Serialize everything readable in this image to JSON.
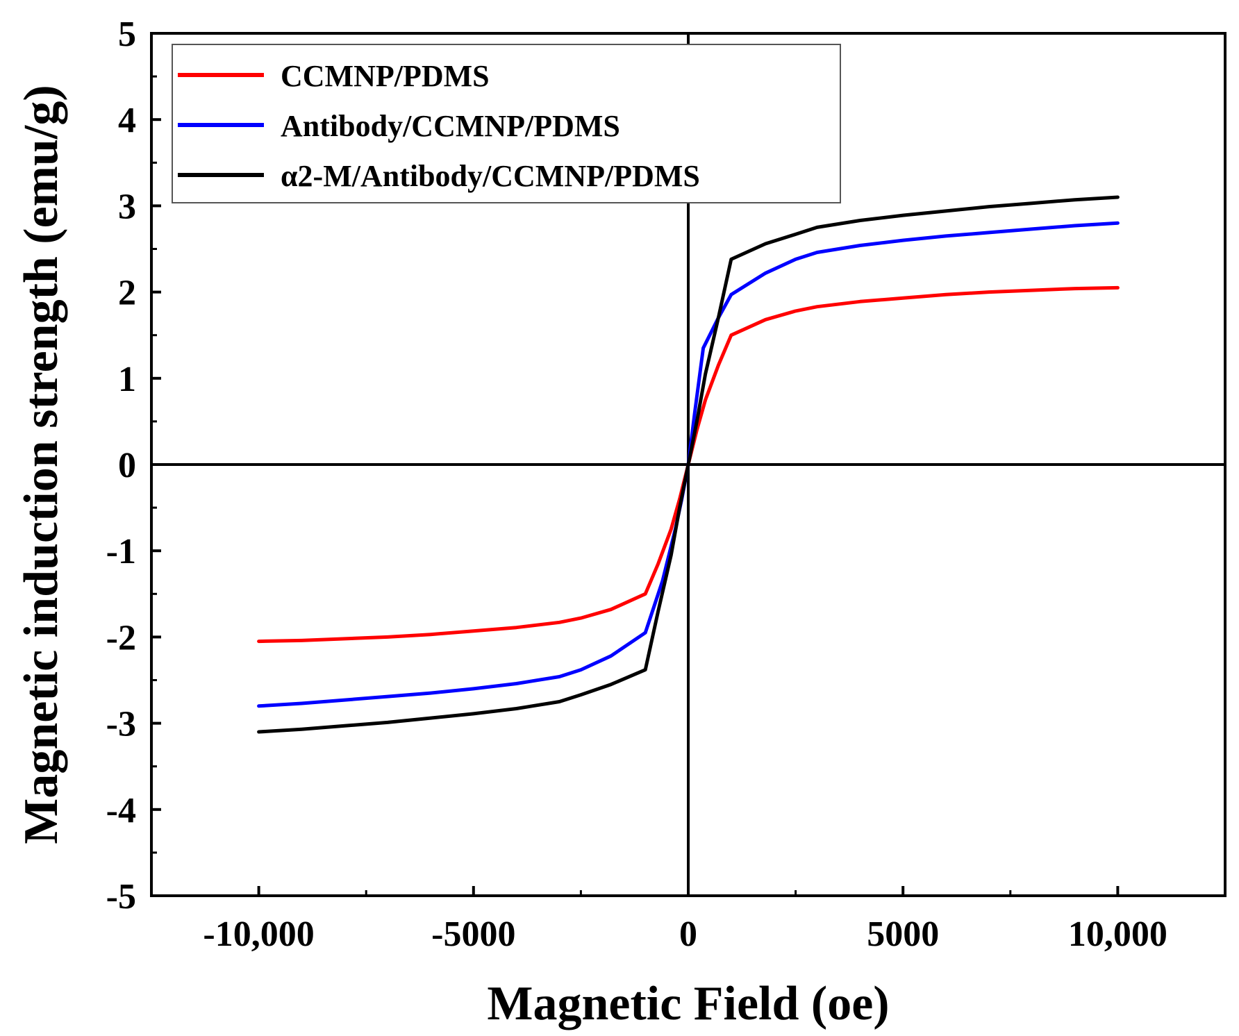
{
  "chart_data": {
    "type": "line",
    "title": "",
    "xlabel": "Magnetic Field (oe)",
    "ylabel": "Magnetic induction strength (emu/g)",
    "xlim": [
      -12500,
      12500
    ],
    "ylim": [
      -5,
      5
    ],
    "xticks": [
      -10000,
      -5000,
      0,
      5000,
      10000
    ],
    "xtick_labels": [
      "-10,000",
      "-5000",
      "0",
      "5000",
      "10,000"
    ],
    "yticks": [
      -5,
      -4,
      -3,
      -2,
      -1,
      0,
      1,
      2,
      3,
      4,
      5
    ],
    "ytick_labels": [
      "-5",
      "-4",
      "-3",
      "-2",
      "-1",
      "0",
      "1",
      "2",
      "3",
      "4",
      "5"
    ],
    "zero_lines": true,
    "grid": false,
    "legend_position": "top-left",
    "series": [
      {
        "name": "CCMNP/PDMS",
        "color": "#ff0000",
        "points": [
          [
            -10000,
            -2.05
          ],
          [
            -9000,
            -2.04
          ],
          [
            -8000,
            -2.02
          ],
          [
            -7000,
            -2.0
          ],
          [
            -6000,
            -1.97
          ],
          [
            -5000,
            -1.93
          ],
          [
            -4000,
            -1.89
          ],
          [
            -3000,
            -1.83
          ],
          [
            -2500,
            -1.78
          ],
          [
            -1800,
            -1.68
          ],
          [
            -1000,
            -1.5
          ],
          [
            -700,
            -1.15
          ],
          [
            -400,
            -0.75
          ],
          [
            -200,
            -0.4
          ],
          [
            0,
            0
          ],
          [
            200,
            0.4
          ],
          [
            400,
            0.75
          ],
          [
            700,
            1.15
          ],
          [
            1000,
            1.5
          ],
          [
            1800,
            1.68
          ],
          [
            2500,
            1.78
          ],
          [
            3000,
            1.83
          ],
          [
            4000,
            1.89
          ],
          [
            5000,
            1.93
          ],
          [
            6000,
            1.97
          ],
          [
            7000,
            2.0
          ],
          [
            8000,
            2.02
          ],
          [
            9000,
            2.04
          ],
          [
            10000,
            2.05
          ]
        ]
      },
      {
        "name": "Antibody/CCMNP/PDMS",
        "color": "#0000ff",
        "points": [
          [
            -10000,
            -2.8
          ],
          [
            -9000,
            -2.77
          ],
          [
            -8000,
            -2.73
          ],
          [
            -7000,
            -2.69
          ],
          [
            -6000,
            -2.65
          ],
          [
            -5000,
            -2.6
          ],
          [
            -4000,
            -2.54
          ],
          [
            -3000,
            -2.46
          ],
          [
            -2500,
            -2.38
          ],
          [
            -1800,
            -2.22
          ],
          [
            -1000,
            -1.95
          ],
          [
            -600,
            -1.35
          ],
          [
            -300,
            -0.75
          ],
          [
            -150,
            -0.4
          ],
          [
            0,
            0
          ],
          [
            150,
            0.6
          ],
          [
            350,
            1.35
          ],
          [
            700,
            1.7
          ],
          [
            1000,
            1.97
          ],
          [
            1800,
            2.22
          ],
          [
            2500,
            2.38
          ],
          [
            3000,
            2.46
          ],
          [
            4000,
            2.54
          ],
          [
            5000,
            2.6
          ],
          [
            6000,
            2.65
          ],
          [
            7000,
            2.69
          ],
          [
            8000,
            2.73
          ],
          [
            9000,
            2.77
          ],
          [
            10000,
            2.8
          ]
        ]
      },
      {
        "name": "α2-M/Antibody/CCMNP/PDMS",
        "color": "#000000",
        "points": [
          [
            -10000,
            -3.1
          ],
          [
            -9000,
            -3.07
          ],
          [
            -8000,
            -3.03
          ],
          [
            -7000,
            -2.99
          ],
          [
            -6000,
            -2.94
          ],
          [
            -5000,
            -2.89
          ],
          [
            -4000,
            -2.83
          ],
          [
            -3000,
            -2.75
          ],
          [
            -2500,
            -2.67
          ],
          [
            -1800,
            -2.55
          ],
          [
            -1000,
            -2.38
          ],
          [
            -700,
            -1.7
          ],
          [
            -400,
            -1.05
          ],
          [
            -200,
            -0.5
          ],
          [
            0,
            0
          ],
          [
            200,
            0.5
          ],
          [
            400,
            1.05
          ],
          [
            700,
            1.7
          ],
          [
            1000,
            2.38
          ],
          [
            1800,
            2.56
          ],
          [
            2500,
            2.67
          ],
          [
            3000,
            2.75
          ],
          [
            4000,
            2.83
          ],
          [
            5000,
            2.89
          ],
          [
            6000,
            2.94
          ],
          [
            7000,
            2.99
          ],
          [
            8000,
            3.03
          ],
          [
            9000,
            3.07
          ],
          [
            10000,
            3.1
          ]
        ]
      }
    ]
  }
}
